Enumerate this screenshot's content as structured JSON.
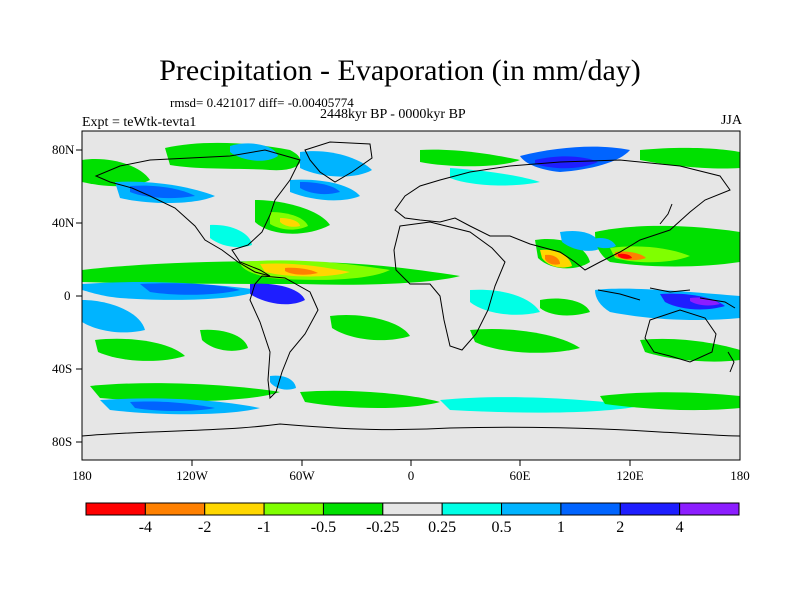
{
  "title": "Precipitation - Evaporation (in mm/day)",
  "stats": "rmsd= 0.421017  diff= -0.00405774",
  "period": "2448kyr BP - 0000kyr BP",
  "experiment": "Expt = teWtk-tevta1",
  "season": "JJA",
  "lat_labels": [
    "80N",
    "40N",
    "0",
    "40S",
    "80S"
  ],
  "lon_labels": [
    "180",
    "120W",
    "60W",
    "0",
    "60E",
    "120E",
    "180"
  ],
  "colorbar": {
    "labels": [
      "-4",
      "-2",
      "-1",
      "-0.5",
      "-0.25",
      "0.25",
      "0.5",
      "1",
      "2",
      "4"
    ],
    "colors": [
      "#ff0000",
      "#ff8000",
      "#ffd700",
      "#80ff00",
      "#00e000",
      "#e6e6e6",
      "#00ffe6",
      "#00b4ff",
      "#0064ff",
      "#1e1eff",
      "#8c1eff"
    ]
  },
  "colors": {
    "land_ocean_base": "#e6e6e6",
    "coastline": "#000000"
  }
}
